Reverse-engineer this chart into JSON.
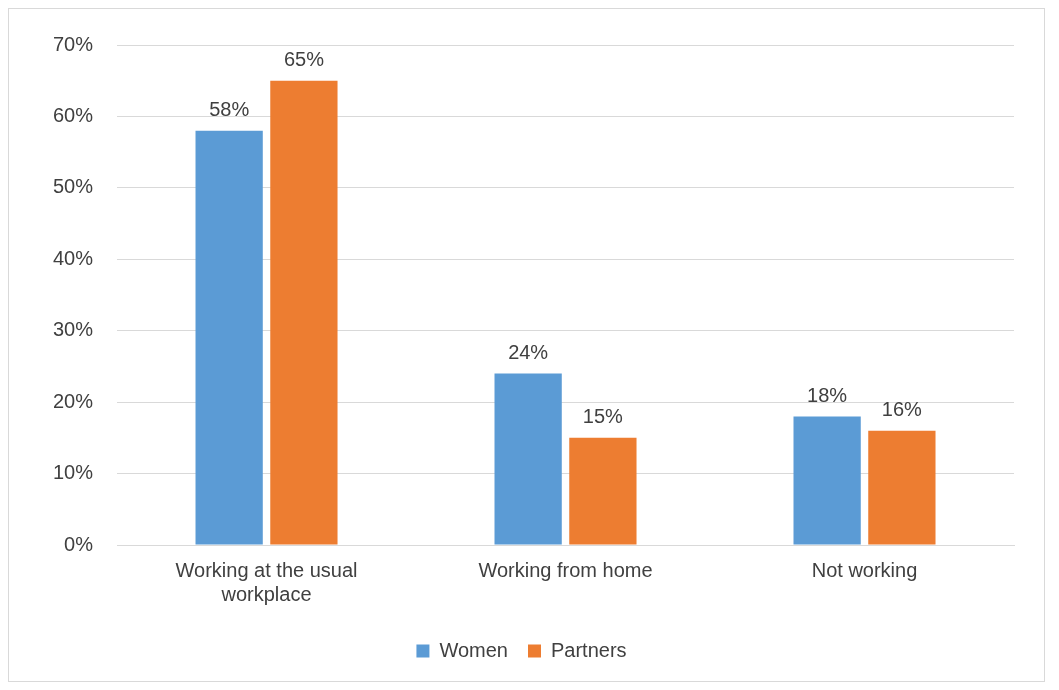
{
  "chart_data": {
    "type": "bar",
    "categories": [
      "Working at the usual workplace",
      "Working from home",
      "Not working"
    ],
    "series": [
      {
        "name": "Women",
        "color": "#5b9bd5",
        "values": [
          58,
          24,
          18
        ],
        "value_labels": [
          "58%",
          "24%",
          "18%"
        ]
      },
      {
        "name": "Partners",
        "color": "#ed7d31",
        "values": [
          65,
          15,
          16
        ],
        "value_labels": [
          "65%",
          "15%",
          "16%"
        ]
      }
    ],
    "ylim": [
      0,
      70
    ],
    "yticks": [
      {
        "value": 0,
        "label": "0%"
      },
      {
        "value": 10,
        "label": "10%"
      },
      {
        "value": 20,
        "label": "20%"
      },
      {
        "value": 30,
        "label": "30%"
      },
      {
        "value": 40,
        "label": "40%"
      },
      {
        "value": 50,
        "label": "50%"
      },
      {
        "value": 60,
        "label": "60%"
      },
      {
        "value": 70,
        "label": "70%"
      }
    ],
    "grid": "y",
    "legend": "bottom"
  }
}
